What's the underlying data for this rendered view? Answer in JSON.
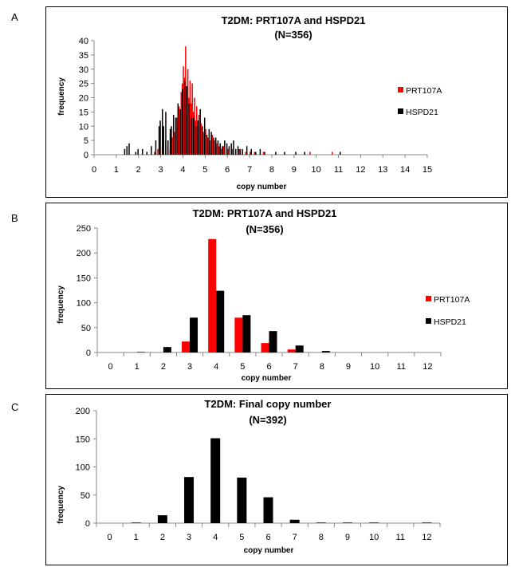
{
  "panels": [
    {
      "letter": "A"
    },
    {
      "letter": "B"
    },
    {
      "letter": "C"
    }
  ],
  "chart_data": [
    {
      "type": "bar",
      "title": "T2DM: PRT107A and HSPD21",
      "subtitle": "(N=356)",
      "xlabel": "copy number",
      "ylabel": "frequency",
      "xlim": [
        0,
        15
      ],
      "ylim": [
        0,
        40
      ],
      "xticks": [
        "0",
        "1",
        "2",
        "3",
        "4",
        "5",
        "6",
        "7",
        "8",
        "9",
        "10",
        "11",
        "12",
        "13",
        "14",
        "15"
      ],
      "yticks": [
        "0",
        "5",
        "10",
        "15",
        "20",
        "25",
        "30",
        "35",
        "40"
      ],
      "legend_position": "right",
      "colors": {
        "PRT107A": "#ff0000",
        "HSPD21": "#000000"
      },
      "series": [
        {
          "name": "PRT107A",
          "points": [
            [
              2.7,
              1
            ],
            [
              2.85,
              2
            ],
            [
              3.05,
              3
            ],
            [
              3.2,
              5
            ],
            [
              3.3,
              3
            ],
            [
              3.4,
              2
            ],
            [
              3.5,
              6
            ],
            [
              3.55,
              9
            ],
            [
              3.6,
              8
            ],
            [
              3.7,
              13
            ],
            [
              3.75,
              10
            ],
            [
              3.8,
              17
            ],
            [
              3.85,
              14
            ],
            [
              3.9,
              22
            ],
            [
              3.95,
              25
            ],
            [
              4.0,
              31
            ],
            [
              4.05,
              27
            ],
            [
              4.1,
              38
            ],
            [
              4.15,
              24
            ],
            [
              4.2,
              30
            ],
            [
              4.25,
              20
            ],
            [
              4.3,
              26
            ],
            [
              4.35,
              18
            ],
            [
              4.4,
              25
            ],
            [
              4.45,
              15
            ],
            [
              4.5,
              20
            ],
            [
              4.55,
              12
            ],
            [
              4.6,
              17
            ],
            [
              4.65,
              10
            ],
            [
              4.7,
              14
            ],
            [
              4.8,
              11
            ],
            [
              4.9,
              8
            ],
            [
              5.0,
              9
            ],
            [
              5.1,
              6
            ],
            [
              5.2,
              5
            ],
            [
              5.3,
              7
            ],
            [
              5.4,
              5
            ],
            [
              5.5,
              4
            ],
            [
              5.6,
              3
            ],
            [
              5.7,
              2
            ],
            [
              5.8,
              3
            ],
            [
              6.0,
              2
            ],
            [
              6.2,
              2
            ],
            [
              6.5,
              2
            ],
            [
              6.8,
              1
            ],
            [
              7.0,
              1
            ],
            [
              7.2,
              1
            ],
            [
              7.6,
              1
            ],
            [
              9.7,
              1
            ],
            [
              10.7,
              1
            ]
          ]
        },
        {
          "name": "HSPD21",
          "points": [
            [
              1.4,
              2
            ],
            [
              1.5,
              3
            ],
            [
              1.6,
              4
            ],
            [
              1.9,
              1
            ],
            [
              2.0,
              2
            ],
            [
              2.2,
              2
            ],
            [
              2.4,
              1
            ],
            [
              2.6,
              3
            ],
            [
              2.8,
              5
            ],
            [
              2.95,
              10
            ],
            [
              3.0,
              12
            ],
            [
              3.1,
              16
            ],
            [
              3.15,
              10
            ],
            [
              3.25,
              15
            ],
            [
              3.35,
              5
            ],
            [
              3.45,
              9
            ],
            [
              3.5,
              10
            ],
            [
              3.6,
              14
            ],
            [
              3.7,
              13
            ],
            [
              3.8,
              18
            ],
            [
              3.9,
              16
            ],
            [
              4.0,
              23
            ],
            [
              4.1,
              26
            ],
            [
              4.2,
              24
            ],
            [
              4.3,
              18
            ],
            [
              4.4,
              13
            ],
            [
              4.5,
              13
            ],
            [
              4.6,
              10
            ],
            [
              4.7,
              12
            ],
            [
              4.8,
              16
            ],
            [
              4.9,
              10
            ],
            [
              5.0,
              13
            ],
            [
              5.1,
              7
            ],
            [
              5.2,
              9
            ],
            [
              5.3,
              8
            ],
            [
              5.4,
              6
            ],
            [
              5.5,
              6
            ],
            [
              5.6,
              5
            ],
            [
              5.7,
              4
            ],
            [
              5.8,
              3
            ],
            [
              5.9,
              5
            ],
            [
              6.0,
              4
            ],
            [
              6.1,
              3
            ],
            [
              6.2,
              4
            ],
            [
              6.3,
              5
            ],
            [
              6.4,
              2
            ],
            [
              6.5,
              3
            ],
            [
              6.6,
              2
            ],
            [
              6.7,
              2
            ],
            [
              6.9,
              3
            ],
            [
              7.1,
              2
            ],
            [
              7.3,
              1
            ],
            [
              7.5,
              2
            ],
            [
              7.7,
              1
            ],
            [
              8.2,
              1
            ],
            [
              8.6,
              1
            ],
            [
              9.1,
              1
            ],
            [
              9.5,
              1
            ],
            [
              11.1,
              1
            ]
          ]
        }
      ]
    },
    {
      "type": "bar",
      "title": "T2DM: PRT107A and HSPD21",
      "subtitle": "(N=356)",
      "xlabel": "copy number",
      "ylabel": "frequency",
      "categories": [
        "0",
        "1",
        "2",
        "3",
        "4",
        "5",
        "6",
        "7",
        "8",
        "9",
        "10",
        "11",
        "12"
      ],
      "ylim": [
        0,
        250
      ],
      "yticks": [
        "0",
        "50",
        "100",
        "150",
        "200",
        "250"
      ],
      "legend_position": "right",
      "colors": {
        "PRT107A": "#ff0000",
        "HSPD21": "#000000"
      },
      "series": [
        {
          "name": "PRT107A",
          "values": [
            0,
            0,
            0,
            22,
            228,
            70,
            19,
            6,
            0,
            0,
            0,
            0,
            0
          ]
        },
        {
          "name": "HSPD21",
          "values": [
            0,
            1,
            11,
            70,
            124,
            75,
            43,
            14,
            3,
            0,
            0,
            0,
            0
          ]
        }
      ]
    },
    {
      "type": "bar",
      "title": "T2DM: Final copy number",
      "subtitle": "(N=392)",
      "xlabel": "copy number",
      "ylabel": "frequency",
      "categories": [
        "0",
        "1",
        "2",
        "3",
        "4",
        "5",
        "6",
        "7",
        "8",
        "9",
        "10",
        "11",
        "12"
      ],
      "ylim": [
        0,
        200
      ],
      "yticks": [
        "0",
        "50",
        "100",
        "150",
        "200"
      ],
      "colors": {
        "bars": "#000000"
      },
      "series": [
        {
          "values": [
            0,
            1,
            14,
            82,
            151,
            81,
            46,
            6,
            1,
            1,
            1,
            0,
            1
          ]
        }
      ]
    }
  ]
}
